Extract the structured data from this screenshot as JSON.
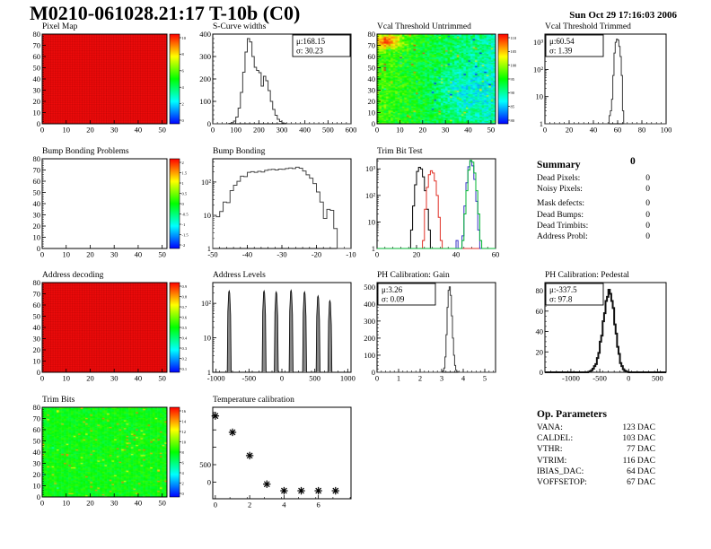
{
  "page": {
    "title": "M0210-061028.21:17 T-10b (C0)",
    "date": "Sun Oct 29 17:16:03 2006"
  },
  "summary": {
    "title": "Summary",
    "grade": "0",
    "rows": [
      {
        "label": "Dead Pixels:",
        "value": "0"
      },
      {
        "label": "Noisy Pixels:",
        "value": "0"
      },
      {
        "label": "Mask defects:",
        "value": "0"
      },
      {
        "label": "Dead Bumps:",
        "value": "0"
      },
      {
        "label": "Dead Trimbits:",
        "value": "0"
      },
      {
        "label": "Address Probl:",
        "value": "0"
      }
    ]
  },
  "op_parameters": {
    "title": "Op. Parameters",
    "rows": [
      {
        "label": "VANA:",
        "value": "123 DAC"
      },
      {
        "label": "CALDEL:",
        "value": "103 DAC"
      },
      {
        "label": "VTHR:",
        "value": "77 DAC"
      },
      {
        "label": "VTRIM:",
        "value": "116 DAC"
      },
      {
        "label": "IBIAS_DAC:",
        "value": "64 DAC"
      },
      {
        "label": "VOFFSETOP:",
        "value": "67 DAC"
      }
    ]
  },
  "chart_data": [
    {
      "id": "pixel_map",
      "type": "heatmap",
      "title": "Pixel Map",
      "heat": "uniform",
      "grid": [
        52,
        80
      ],
      "uniform_color": "#fb0d0d",
      "xlim": [
        0,
        52
      ],
      "ylim_map": [
        0,
        80
      ],
      "xticks": [
        [
          0,
          "0"
        ],
        [
          10,
          "10"
        ],
        [
          20,
          "20"
        ],
        [
          30,
          "30"
        ],
        [
          40,
          "40"
        ],
        [
          50,
          "50"
        ]
      ],
      "yticks_map": [
        [
          0,
          "0"
        ],
        [
          10,
          "10"
        ],
        [
          20,
          "20"
        ],
        [
          30,
          "30"
        ],
        [
          40,
          "40"
        ],
        [
          50,
          "50"
        ],
        [
          60,
          "60"
        ],
        [
          70,
          "70"
        ],
        [
          80,
          "80"
        ]
      ],
      "colorbar": {
        "labels": [
          "10",
          "8",
          "6",
          "4",
          "2",
          "0"
        ]
      }
    },
    {
      "id": "scurve_widths",
      "type": "histogram",
      "title": "S-Curve widths",
      "xlim": [
        0,
        600
      ],
      "ylim": [
        0,
        400
      ],
      "xminor": 20,
      "yminor": 20,
      "xticks": [
        [
          0,
          "0"
        ],
        [
          100,
          "100"
        ],
        [
          200,
          "200"
        ],
        [
          300,
          "300"
        ],
        [
          400,
          "400"
        ],
        [
          500,
          "500"
        ],
        [
          600,
          "600"
        ]
      ],
      "yticks": [
        [
          0,
          "0"
        ],
        [
          100,
          "100"
        ],
        [
          200,
          "200"
        ],
        [
          300,
          "300"
        ],
        [
          400,
          "400"
        ]
      ],
      "stats": {
        "pos": "tr",
        "lines": [
          "μ:168.15",
          "σ: 30.23"
        ]
      },
      "series": [
        {
          "color": "#3a3a3a",
          "x0": 70,
          "dx": 10,
          "counts": [
            2,
            5,
            12,
            30,
            70,
            140,
            230,
            320,
            380,
            365,
            300,
            252,
            238,
            228,
            168,
            212,
            192,
            148,
            100,
            64,
            38,
            20,
            10,
            4,
            2
          ]
        }
      ]
    },
    {
      "id": "vcal_untrimmed",
      "type": "heatmap",
      "title": "Vcal Threshold Untrimmed",
      "heat": "vcal",
      "grid": [
        52,
        80
      ],
      "seed": 42,
      "scale": [
        80,
        114
      ],
      "xlim": [
        0,
        52
      ],
      "xticks": [
        [
          0,
          "0"
        ],
        [
          10,
          "10"
        ],
        [
          20,
          "20"
        ],
        [
          30,
          "30"
        ],
        [
          40,
          "40"
        ],
        [
          50,
          "50"
        ]
      ],
      "yticks_map": [
        [
          0,
          "0"
        ],
        [
          10,
          "10"
        ],
        [
          20,
          "20"
        ],
        [
          30,
          "30"
        ],
        [
          40,
          "40"
        ],
        [
          50,
          "50"
        ],
        [
          60,
          "60"
        ],
        [
          70,
          "70"
        ],
        [
          80,
          "80"
        ]
      ],
      "colorbar": {
        "labels": [
          "110",
          "105",
          "100",
          "95",
          "90",
          "85",
          "80"
        ]
      }
    },
    {
      "id": "vcal_trimmed",
      "type": "histogram",
      "title": "Vcal Threshold Trimmed",
      "xlim": [
        0,
        100
      ],
      "ylim": [
        1,
        2000
      ],
      "ylog": true,
      "xminor": 4,
      "xticks": [
        [
          0,
          "0"
        ],
        [
          20,
          "20"
        ],
        [
          40,
          "40"
        ],
        [
          60,
          "60"
        ],
        [
          80,
          "80"
        ],
        [
          100,
          "100"
        ]
      ],
      "yticks": [
        [
          1,
          "1"
        ],
        [
          10,
          "10"
        ],
        [
          100,
          "10²"
        ],
        [
          1000,
          "10³"
        ]
      ],
      "stats": {
        "pos": "tl",
        "lines": [
          "μ:60.54",
          "σ: 1.39"
        ]
      },
      "series": [
        {
          "color": "#3a3a3a",
          "x0": 53,
          "dx": 1,
          "counts": [
            2,
            3,
            8,
            60,
            400,
            1000,
            1300,
            1200,
            700,
            300,
            60,
            3
          ]
        }
      ]
    },
    {
      "id": "bump_problems",
      "type": "heatmap",
      "title": "Bump Bonding Problems",
      "heat": "empty",
      "grid": [
        52,
        80
      ],
      "xlim": [
        0,
        52
      ],
      "xticks": [
        [
          0,
          "0"
        ],
        [
          10,
          "10"
        ],
        [
          20,
          "20"
        ],
        [
          30,
          "30"
        ],
        [
          40,
          "40"
        ],
        [
          50,
          "50"
        ]
      ],
      "yticks_map": [
        [
          0,
          "0"
        ],
        [
          10,
          "10"
        ],
        [
          20,
          "20"
        ],
        [
          30,
          "30"
        ],
        [
          40,
          "40"
        ],
        [
          50,
          "50"
        ],
        [
          60,
          "60"
        ],
        [
          70,
          "70"
        ],
        [
          80,
          "80"
        ]
      ],
      "colorbar": {
        "labels": [
          "2",
          "1.5",
          "1",
          "0.5",
          "0",
          "-0.5",
          "-1",
          "-1.5",
          "-2"
        ]
      }
    },
    {
      "id": "bump_bonding",
      "type": "histogram",
      "title": "Bump Bonding",
      "xlim": [
        -50,
        -10
      ],
      "ylim": [
        1,
        500
      ],
      "ylog": true,
      "xminor": 2,
      "xticks": [
        [
          -50,
          "-50"
        ],
        [
          -40,
          "-40"
        ],
        [
          -30,
          "-30"
        ],
        [
          -20,
          "-20"
        ],
        [
          -10,
          "-10"
        ]
      ],
      "yticks": [
        [
          1,
          "1"
        ],
        [
          10,
          "10"
        ],
        [
          100,
          "10²"
        ]
      ],
      "series": [
        {
          "color": "#444444",
          "x0": -50,
          "dx": 1,
          "counts": [
            10,
            9,
            13,
            25,
            24,
            55,
            80,
            105,
            150,
            145,
            195,
            205,
            195,
            210,
            200,
            225,
            235,
            240,
            230,
            245,
            240,
            255,
            265,
            255,
            280,
            260,
            215,
            165,
            130,
            90,
            50,
            25,
            8,
            15,
            14,
            4,
            1,
            0,
            0,
            0
          ]
        }
      ]
    },
    {
      "id": "trim_bit_test",
      "type": "histogram",
      "title": "Trim Bit Test",
      "xlim": [
        0,
        60
      ],
      "ylim": [
        1,
        2400
      ],
      "ylog": true,
      "xminor": 4,
      "xticks": [
        [
          0,
          "0"
        ],
        [
          20,
          "20"
        ],
        [
          40,
          "40"
        ],
        [
          60,
          "60"
        ]
      ],
      "yticks": [
        [
          1,
          "1"
        ],
        [
          10,
          "10"
        ],
        [
          100,
          "10²"
        ],
        [
          1000,
          "10³"
        ]
      ],
      "series": [
        {
          "color": "#000000",
          "x0": 16,
          "dx": 1,
          "counts": [
            1,
            5,
            40,
            250,
            800,
            1150,
            1000,
            500,
            150,
            30,
            5,
            1
          ]
        },
        {
          "color": "#e03127",
          "x0": 22,
          "dx": 1,
          "counts": [
            1,
            2,
            30,
            200,
            600,
            850,
            700,
            350,
            100,
            15,
            2
          ]
        },
        {
          "color": "#3a35c8",
          "x0": 39,
          "dx": 1,
          "counts": [
            0,
            2,
            0,
            0,
            3,
            40,
            300,
            1200,
            1900,
            1300,
            400,
            60,
            5,
            0
          ]
        },
        {
          "color": "#00b531",
          "x0": 43,
          "dx": 1,
          "counts": [
            2,
            20,
            150,
            900,
            2100,
            1800,
            700,
            150,
            20,
            2
          ]
        }
      ]
    },
    {
      "id": "address_decoding",
      "type": "heatmap",
      "title": "Address decoding",
      "heat": "uniform",
      "grid": [
        52,
        80
      ],
      "uniform_color": "#fb0d0d",
      "xlim": [
        0,
        52
      ],
      "xticks": [
        [
          0,
          "0"
        ],
        [
          10,
          "10"
        ],
        [
          20,
          "20"
        ],
        [
          30,
          "30"
        ],
        [
          40,
          "40"
        ],
        [
          50,
          "50"
        ]
      ],
      "yticks_map": [
        [
          0,
          "0"
        ],
        [
          10,
          "10"
        ],
        [
          20,
          "20"
        ],
        [
          30,
          "30"
        ],
        [
          40,
          "40"
        ],
        [
          50,
          "50"
        ],
        [
          60,
          "60"
        ],
        [
          70,
          "70"
        ],
        [
          80,
          "80"
        ]
      ],
      "colorbar": {
        "labels": [
          "0.9",
          "0.8",
          "0.7",
          "0.6",
          "0.5",
          "0.4",
          "0.3",
          "0.2",
          "0.1"
        ]
      }
    },
    {
      "id": "address_levels",
      "type": "histogram",
      "title": "Address Levels",
      "xlim": [
        -1050,
        1050
      ],
      "ylim": [
        1,
        400
      ],
      "ylog": true,
      "xminor": 100,
      "xticks": [
        [
          -1000,
          "-1000"
        ],
        [
          -500,
          "-500"
        ],
        [
          0,
          "0"
        ],
        [
          500,
          "500"
        ],
        [
          1000,
          "1000"
        ]
      ],
      "yticks": [
        [
          1,
          "1"
        ],
        [
          10,
          "10"
        ],
        [
          100,
          "10²"
        ]
      ],
      "spikes": [
        [
          -800,
          230
        ],
        [
          -270,
          230
        ],
        [
          -85,
          215
        ],
        [
          140,
          240
        ],
        [
          345,
          215
        ],
        [
          550,
          165
        ],
        [
          730,
          120
        ]
      ]
    },
    {
      "id": "ph_gain",
      "type": "histogram",
      "title": "PH Calibration: Gain",
      "xlim": [
        0,
        5.5
      ],
      "ylim": [
        0,
        525
      ],
      "xminor": 0.2,
      "yminor": 20,
      "xticks": [
        [
          0,
          "0"
        ],
        [
          1,
          "1"
        ],
        [
          2,
          "2"
        ],
        [
          3,
          "3"
        ],
        [
          4,
          "4"
        ],
        [
          5,
          "5"
        ]
      ],
      "yticks": [
        [
          0,
          "0"
        ],
        [
          100,
          "100"
        ],
        [
          200,
          "200"
        ],
        [
          300,
          "300"
        ],
        [
          400,
          "400"
        ],
        [
          500,
          "500"
        ]
      ],
      "stats": {
        "pos": "tl",
        "lines": [
          "μ:3.26",
          "σ: 0.09"
        ]
      },
      "series": [
        {
          "color": "#3a3a3a",
          "x0": 3.0,
          "dx": 0.05,
          "counts": [
            3,
            8,
            25,
            90,
            220,
            380,
            480,
            500,
            450,
            330,
            200,
            100,
            40,
            12,
            4,
            1
          ]
        }
      ]
    },
    {
      "id": "ph_pedestal",
      "type": "histogram",
      "title": "PH Calibration: Pedestal",
      "xlim": [
        -1450,
        650
      ],
      "ylim": [
        0,
        88
      ],
      "xminor": 100,
      "yminor": 5,
      "xticks": [
        [
          -1000,
          "-1000"
        ],
        [
          -500,
          "-500"
        ],
        [
          0,
          "0"
        ],
        [
          500,
          "500"
        ]
      ],
      "yticks": [
        [
          0,
          "0"
        ],
        [
          20,
          "20"
        ],
        [
          40,
          "40"
        ],
        [
          60,
          "60"
        ],
        [
          80,
          "80"
        ]
      ],
      "stats": {
        "pos": "tl",
        "lines": [
          "μ:-337.5",
          "σ: 97.8"
        ]
      },
      "series": [
        {
          "color": "#111111",
          "lw": 2,
          "x0": -700,
          "dx": 25,
          "counts": [
            0.4,
            1,
            2,
            3.5,
            6,
            8,
            14,
            19,
            30,
            36,
            50,
            58,
            70,
            74,
            81,
            77,
            70,
            63,
            47,
            38,
            25,
            18,
            9,
            6,
            3,
            1.5,
            0.8,
            0.3
          ]
        }
      ]
    },
    {
      "id": "trim_bits",
      "type": "heatmap",
      "title": "Trim Bits",
      "heat": "trim",
      "grid": [
        52,
        80
      ],
      "seed": 7,
      "scale": [
        0,
        16
      ],
      "xlim": [
        0,
        52
      ],
      "xticks": [
        [
          0,
          "0"
        ],
        [
          10,
          "10"
        ],
        [
          20,
          "20"
        ],
        [
          30,
          "30"
        ],
        [
          40,
          "40"
        ],
        [
          50,
          "50"
        ]
      ],
      "yticks_map": [
        [
          0,
          "0"
        ],
        [
          10,
          "10"
        ],
        [
          20,
          "20"
        ],
        [
          30,
          "30"
        ],
        [
          40,
          "40"
        ],
        [
          50,
          "50"
        ],
        [
          60,
          "60"
        ],
        [
          70,
          "70"
        ],
        [
          80,
          "80"
        ]
      ],
      "colorbar": {
        "labels": [
          "16",
          "14",
          "12",
          "10",
          "8",
          "6",
          "4",
          "2",
          "0"
        ]
      }
    },
    {
      "id": "temp_cal",
      "type": "scatter",
      "title": "Temperature calibration",
      "xlim": [
        -0.15,
        7.9
      ],
      "ylim": [
        -480,
        2150
      ],
      "xminor": 1,
      "xticks": [
        [
          0,
          "0"
        ],
        [
          2,
          "2"
        ],
        [
          4,
          "4"
        ],
        [
          6,
          "6"
        ]
      ],
      "yticks": [
        [
          0,
          "0"
        ],
        [
          500,
          "500"
        ],
        [
          1000,
          ""
        ],
        [
          1500,
          ""
        ],
        [
          2000,
          ""
        ]
      ],
      "points": [
        [
          0,
          1900
        ],
        [
          1,
          1430
        ],
        [
          2,
          760
        ],
        [
          3,
          -60
        ],
        [
          4,
          -250
        ],
        [
          5,
          -250
        ],
        [
          6,
          -250
        ],
        [
          7,
          -250
        ]
      ]
    }
  ]
}
